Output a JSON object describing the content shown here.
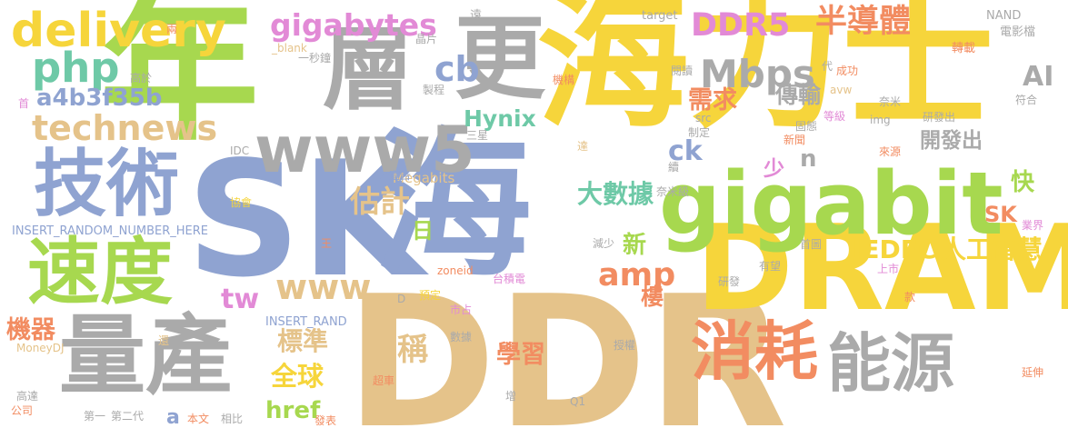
{
  "colors": {
    "background": "#ffffff",
    "palette": [
      "#f4d03f",
      "#8fa3d1",
      "#a7d84f",
      "#aaaaaa",
      "#e5c38a",
      "#f28c61",
      "#e28ad6",
      "#6ec9a7"
    ]
  },
  "words": [
    {
      "text": "海力士",
      "color": "#f6d53b"
    },
    {
      "text": "年",
      "color": "#a7d84f"
    },
    {
      "text": "SK",
      "color": "#8fa3d1"
    },
    {
      "text": "海",
      "color": "#8fa3d1"
    },
    {
      "text": "DDR",
      "color": "#e5c38a"
    },
    {
      "text": "DRAM",
      "color": "#f6d53b"
    },
    {
      "text": "gigabit",
      "color": "#a7d84f"
    },
    {
      "text": "層",
      "color": "#aaaaaa"
    },
    {
      "text": "更",
      "color": "#aaaaaa"
    },
    {
      "text": "www5",
      "color": "#aaaaaa"
    },
    {
      "text": "技術",
      "color": "#8fa3d1"
    },
    {
      "text": "速度",
      "color": "#a7d84f"
    },
    {
      "text": "量產",
      "color": "#aaaaaa"
    },
    {
      "text": "消耗",
      "color": "#f28c61"
    },
    {
      "text": "能源",
      "color": "#aaaaaa"
    },
    {
      "text": "delivery",
      "color": "#f6d53b"
    },
    {
      "text": "php",
      "color": "#6ec9a7"
    },
    {
      "text": "technews",
      "color": "#e5c38a"
    },
    {
      "text": "a4b3f35b",
      "color": "#8fa3d1"
    },
    {
      "text": "gigabytes",
      "color": "#e28ad6"
    },
    {
      "text": "cb",
      "color": "#8fa3d1"
    },
    {
      "text": "DDR5",
      "color": "#e28ad6"
    },
    {
      "text": "半導體",
      "color": "#f28c61"
    },
    {
      "text": "Mbps",
      "color": "#aaaaaa"
    },
    {
      "text": "AI",
      "color": "#aaaaaa"
    },
    {
      "text": "需求",
      "color": "#f28c61"
    },
    {
      "text": "傳輸",
      "color": "#aaaaaa"
    },
    {
      "text": "Hynix",
      "color": "#6ec9a7"
    },
    {
      "text": "估計",
      "color": "#e5c38a"
    },
    {
      "text": "ck",
      "color": "#8fa3d1"
    },
    {
      "text": "n",
      "color": "#aaaaaa"
    },
    {
      "text": "開發出",
      "color": "#aaaaaa"
    },
    {
      "text": "快",
      "color": "#a7d84f"
    },
    {
      "text": "少",
      "color": "#e28ad6"
    },
    {
      "text": "大數據",
      "color": "#6ec9a7"
    },
    {
      "text": "日",
      "color": "#a7d84f"
    },
    {
      "text": "SK",
      "color": "#f28c61"
    },
    {
      "text": "JEDEC",
      "color": "#f6d53b"
    },
    {
      "text": "人工智慧",
      "color": "#f6d53b"
    },
    {
      "text": "amp",
      "color": "#f28c61"
    },
    {
      "text": "新",
      "color": "#a7d84f"
    },
    {
      "text": "www",
      "color": "#e5c38a"
    },
    {
      "text": "tw",
      "color": "#e28ad6"
    },
    {
      "text": "樓",
      "color": "#f28c61"
    },
    {
      "text": "標準",
      "color": "#e5c38a"
    },
    {
      "text": "稱",
      "color": "#e5c38a"
    },
    {
      "text": "機器",
      "color": "#f28c61"
    },
    {
      "text": "全球",
      "color": "#f6d53b"
    },
    {
      "text": "學習",
      "color": "#f28c61"
    },
    {
      "text": "href",
      "color": "#a7d84f"
    },
    {
      "text": "a",
      "color": "#8fa3d1"
    },
    {
      "text": "Megabits",
      "color": "#e5c38a"
    },
    {
      "text": "INSERT_RANDOM_NUMBER_HERE",
      "color": "#8fa3d1"
    },
    {
      "text": "INSERT_RAND",
      "color": "#8fa3d1"
    },
    {
      "text": "_blank",
      "color": "#e5c38a"
    },
    {
      "text": "target",
      "color": "#aaaaaa"
    },
    {
      "text": "NAND",
      "color": "#aaaaaa"
    },
    {
      "text": "電影檔",
      "color": "#aaaaaa"
    },
    {
      "text": "轉載",
      "color": "#f28c61"
    },
    {
      "text": "遠",
      "color": "#aaaaaa"
    },
    {
      "text": "晶片",
      "color": "#aaaaaa"
    },
    {
      "text": "兩",
      "color": "#f28c61"
    },
    {
      "text": "高於",
      "color": "#aaaaaa"
    },
    {
      "text": "一秒鐘",
      "color": "#aaaaaa"
    },
    {
      "text": "首",
      "color": "#e28ad6"
    },
    {
      "text": "製程",
      "color": "#aaaaaa"
    },
    {
      "text": "機構",
      "color": "#f28c61"
    },
    {
      "text": "閱讀",
      "color": "#aaaaaa"
    },
    {
      "text": "代",
      "color": "#aaaaaa"
    },
    {
      "text": "成功",
      "color": "#f28c61"
    },
    {
      "text": "avw",
      "color": "#e5c38a"
    },
    {
      "text": "奈米",
      "color": "#aaaaaa"
    },
    {
      "text": "等級",
      "color": "#e28ad6"
    },
    {
      "text": "符合",
      "color": "#aaaaaa"
    },
    {
      "text": "src",
      "color": "#aaaaaa"
    },
    {
      "text": "img",
      "color": "#aaaaaa"
    },
    {
      "text": "研發出",
      "color": "#aaaaaa"
    },
    {
      "text": "三星",
      "color": "#aaaaaa"
    },
    {
      "text": "制定",
      "color": "#aaaaaa"
    },
    {
      "text": "固態",
      "color": "#aaaaaa"
    },
    {
      "text": "新聞",
      "color": "#f28c61"
    },
    {
      "text": "IDC",
      "color": "#aaaaaa"
    },
    {
      "text": "達",
      "color": "#e5c38a"
    },
    {
      "text": "來源",
      "color": "#f28c61"
    },
    {
      "text": "宣告",
      "color": "#8fa3d1"
    },
    {
      "text": "續",
      "color": "#aaaaaa"
    },
    {
      "text": "奈米級",
      "color": "#aaaaaa"
    },
    {
      "text": "協會",
      "color": "#f6d53b"
    },
    {
      "text": "業界",
      "color": "#e28ad6"
    },
    {
      "text": "王",
      "color": "#f28c61"
    },
    {
      "text": "減少",
      "color": "#aaaaaa"
    },
    {
      "text": "首圖",
      "color": "#aaaaaa"
    },
    {
      "text": "zoneid",
      "color": "#f28c61"
    },
    {
      "text": "有望",
      "color": "#aaaaaa"
    },
    {
      "text": "上市",
      "color": "#e28ad6"
    },
    {
      "text": "台積電",
      "color": "#e28ad6"
    },
    {
      "text": "研發",
      "color": "#aaaaaa"
    },
    {
      "text": "款",
      "color": "#f28c61"
    },
    {
      "text": "預定",
      "color": "#f6d53b"
    },
    {
      "text": "D",
      "color": "#aaaaaa"
    },
    {
      "text": "市占",
      "color": "#e28ad6"
    },
    {
      "text": "數據",
      "color": "#aaaaaa"
    },
    {
      "text": "授權",
      "color": "#aaaaaa"
    },
    {
      "text": "MoneyDJ",
      "color": "#e5c38a"
    },
    {
      "text": "還",
      "color": "#e5c38a"
    },
    {
      "text": "超車",
      "color": "#f28c61"
    },
    {
      "text": "延伸",
      "color": "#f28c61"
    },
    {
      "text": "高達",
      "color": "#aaaaaa"
    },
    {
      "text": "公司",
      "color": "#f28c61"
    },
    {
      "text": "第一",
      "color": "#aaaaaa"
    },
    {
      "text": "第二代",
      "color": "#aaaaaa"
    },
    {
      "text": "本文",
      "color": "#f28c61"
    },
    {
      "text": "相比",
      "color": "#aaaaaa"
    },
    {
      "text": "發表",
      "color": "#f28c61"
    },
    {
      "text": "增",
      "color": "#aaaaaa"
    },
    {
      "text": "Q1",
      "color": "#aaaaaa"
    }
  ]
}
